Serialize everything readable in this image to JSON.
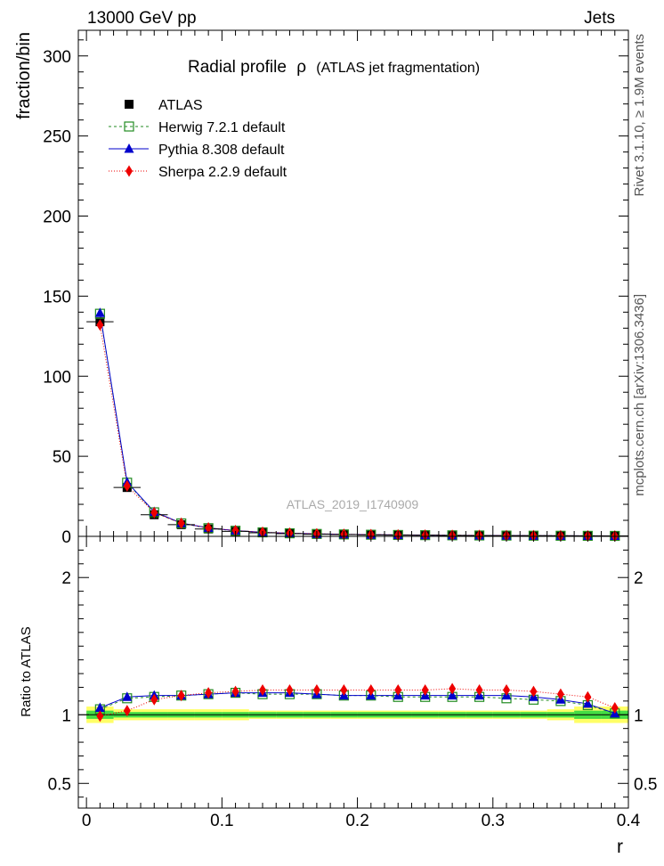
{
  "header": {
    "left": "13000 GeV pp",
    "right": "Jets"
  },
  "side_labels": {
    "right_top": "Rivet 3.1.10, ≥ 1.9M events",
    "right_bottom": "mcplots.cern.ch [arXiv:1306.3436]"
  },
  "chart_data": {
    "type": "line",
    "title": "Radial profile",
    "title_symbol": "ρ",
    "title_suffix": "(ATLAS jet fragmentation)",
    "analysis_tag": "ATLAS_2019_I1740909",
    "xlabel": "r",
    "ylabel": "fraction/bin",
    "ratio_ylabel": "Ratio to ATLAS",
    "xlim": [
      -0.006,
      0.4
    ],
    "ylim": [
      0,
      316
    ],
    "ratio_ylim": [
      0.32,
      2.3
    ],
    "x_ticks": [
      "0",
      "0.1",
      "0.2",
      "0.3",
      "0.4"
    ],
    "y_ticks": [
      "0",
      "50",
      "100",
      "150",
      "200",
      "250",
      "300"
    ],
    "ratio_ticks": [
      "0.5",
      "1",
      "2"
    ],
    "legend_position": "top-left",
    "x": [
      0.01,
      0.03,
      0.05,
      0.07,
      0.09,
      0.11,
      0.13,
      0.15,
      0.17,
      0.19,
      0.21,
      0.23,
      0.25,
      0.27,
      0.29,
      0.31,
      0.33,
      0.35,
      0.37,
      0.39
    ],
    "series": [
      {
        "name": "ATLAS",
        "color": "#000000",
        "values": [
          134,
          30.5,
          13.5,
          7.3,
          4.6,
          3.1,
          2.2,
          1.7,
          1.35,
          1.1,
          0.92,
          0.78,
          0.67,
          0.58,
          0.5,
          0.44,
          0.39,
          0.35,
          0.31,
          0.28
        ]
      },
      {
        "name": "Herwig 7.2.1 default",
        "color": "#228b22",
        "values": [
          139,
          33.5,
          15.0,
          8.1,
          5.1,
          3.5,
          2.5,
          1.9,
          1.5,
          1.22,
          1.02,
          0.86,
          0.74,
          0.64,
          0.55,
          0.48,
          0.42,
          0.38,
          0.33,
          0.28
        ],
        "ratio": [
          1.04,
          1.12,
          1.13,
          1.14,
          1.15,
          1.16,
          1.15,
          1.15,
          1.15,
          1.14,
          1.14,
          1.13,
          1.13,
          1.13,
          1.13,
          1.12,
          1.11,
          1.1,
          1.07,
          1.01
        ]
      },
      {
        "name": "Pythia 8.308 default",
        "color": "#0000cc",
        "values": [
          139.5,
          33.9,
          15.3,
          8.3,
          5.3,
          3.6,
          2.5,
          1.95,
          1.55,
          1.25,
          1.05,
          0.88,
          0.76,
          0.66,
          0.57,
          0.5,
          0.44,
          0.38,
          0.33,
          0.28
        ],
        "ratio": [
          1.05,
          1.13,
          1.14,
          1.14,
          1.15,
          1.16,
          1.16,
          1.16,
          1.15,
          1.14,
          1.14,
          1.14,
          1.14,
          1.14,
          1.14,
          1.14,
          1.13,
          1.11,
          1.08,
          1.01
        ]
      },
      {
        "name": "Sherpa 2.2.9 default",
        "color": "#ee0000",
        "values": [
          132,
          31.5,
          14.8,
          8.2,
          5.3,
          3.6,
          2.6,
          2.0,
          1.6,
          1.3,
          1.1,
          0.92,
          0.8,
          0.69,
          0.6,
          0.52,
          0.46,
          0.4,
          0.35,
          0.29
        ],
        "ratio": [
          0.99,
          1.03,
          1.11,
          1.14,
          1.16,
          1.17,
          1.18,
          1.18,
          1.18,
          1.18,
          1.18,
          1.18,
          1.18,
          1.19,
          1.18,
          1.18,
          1.17,
          1.15,
          1.13,
          1.05
        ]
      }
    ],
    "band": {
      "green": [
        0.03,
        0.02,
        0.02,
        0.02,
        0.02,
        0.02,
        0.02,
        0.02,
        0.02,
        0.02,
        0.02,
        0.02,
        0.02,
        0.02,
        0.02,
        0.02,
        0.02,
        0.02,
        0.03,
        0.03
      ],
      "yellow": [
        0.06,
        0.04,
        0.04,
        0.04,
        0.04,
        0.04,
        0.03,
        0.03,
        0.03,
        0.03,
        0.03,
        0.03,
        0.03,
        0.03,
        0.03,
        0.03,
        0.03,
        0.04,
        0.06,
        0.06
      ],
      "green_color": "#44dd44",
      "yellow_color": "#ffff66"
    }
  }
}
